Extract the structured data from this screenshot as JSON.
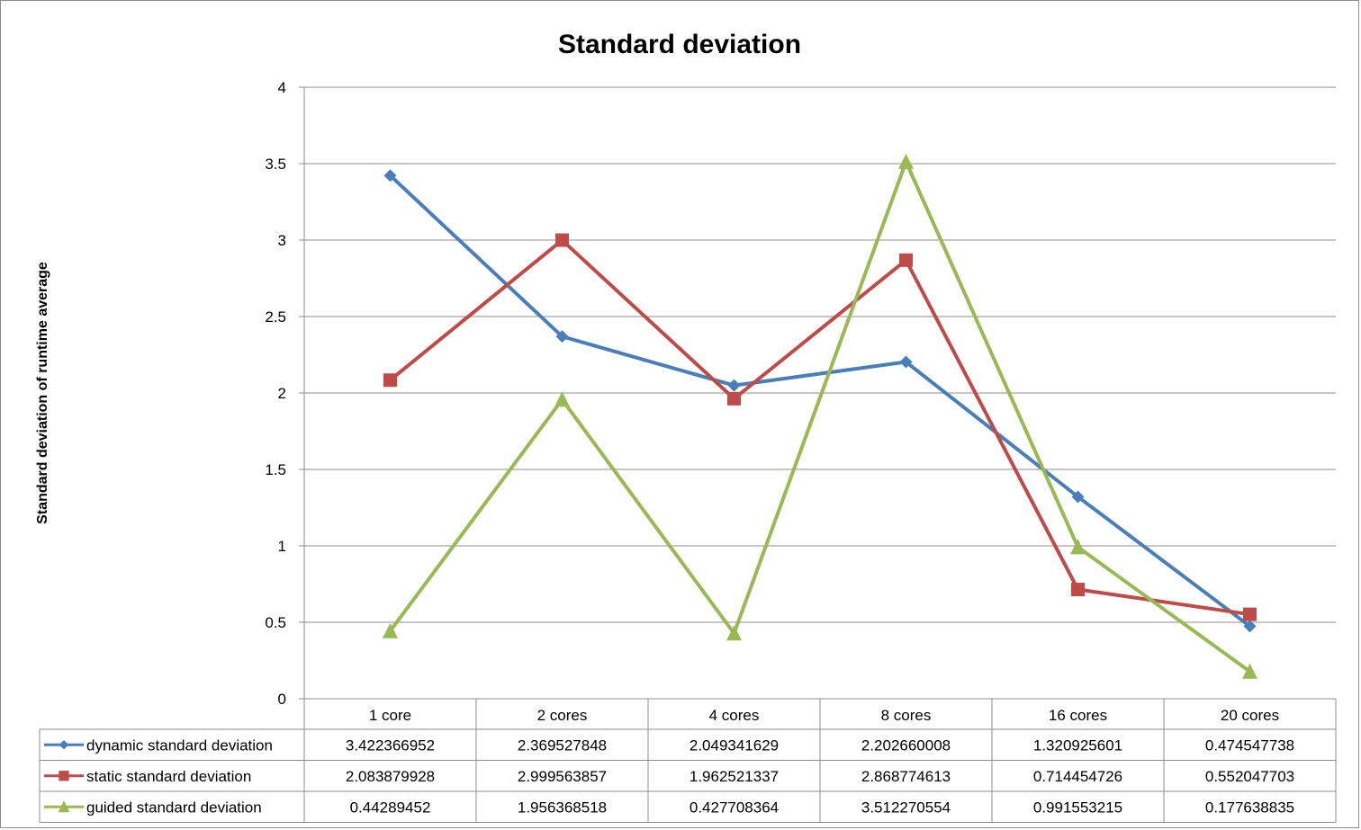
{
  "chart_data": {
    "type": "line",
    "title": "Standard deviation",
    "xlabel": "",
    "ylabel": "Standard deviation of runtime average",
    "categories": [
      "1 core",
      "2 cores",
      "4 cores",
      "8 cores",
      "16 cores",
      "20 cores"
    ],
    "ylim": [
      0,
      4
    ],
    "yticks": [
      "0",
      "0.5",
      "1",
      "1.5",
      "2",
      "2.5",
      "3",
      "3.5",
      "4"
    ],
    "grid": true,
    "legend": "data-table",
    "series": [
      {
        "name": "dynamic standard deviation",
        "color": "#4a7ebb",
        "marker": "diamond",
        "values": [
          3.422366952,
          2.369527848,
          2.049341629,
          2.202660008,
          1.320925601,
          0.474547738
        ],
        "labels": [
          "3.422366952",
          "2.369527848",
          "2.049341629",
          "2.202660008",
          "1.320925601",
          "0.474547738"
        ]
      },
      {
        "name": "static standard deviation",
        "color": "#be4b48",
        "marker": "square",
        "values": [
          2.083879928,
          2.999563857,
          1.962521337,
          2.868774613,
          0.714454726,
          0.552047703
        ],
        "labels": [
          "2.083879928",
          "2.999563857",
          "1.962521337",
          "2.868774613",
          "0.714454726",
          "0.552047703"
        ]
      },
      {
        "name": "guided standard deviation",
        "color": "#98b954",
        "marker": "triangle",
        "values": [
          0.44289452,
          1.956368518,
          0.427708364,
          3.512270554,
          0.991553215,
          0.177638835
        ],
        "labels": [
          "0.44289452",
          "1.956368518",
          "0.427708364",
          "3.512270554",
          "0.991553215",
          "0.177638835"
        ]
      }
    ]
  }
}
